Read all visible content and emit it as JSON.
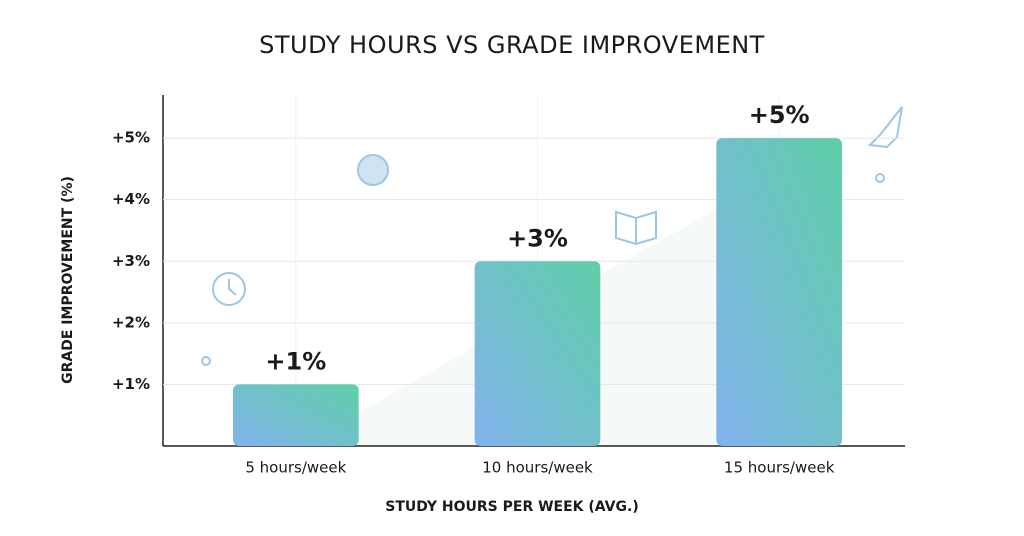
{
  "chart_data": {
    "type": "bar",
    "title": "STUDY HOURS VS GRADE IMPROVEMENT",
    "x_label": "STUDY HOURS PER WEEK (AVG.)",
    "y_label": "GRADE IMPROVEMENT (%)",
    "categories": [
      "5 hours/week",
      "10 hours/week",
      "15 hours/week"
    ],
    "values": [
      1,
      3,
      5
    ],
    "value_labels": [
      "+1%",
      "+3%",
      "+5%"
    ],
    "color": "#5fcfa8",
    "color2": "#82b2ec",
    "ylim": [
      0,
      5.7
    ],
    "yticks": [
      {
        "value": 1,
        "label": "+1%"
      },
      {
        "value": 2,
        "label": "+2%"
      },
      {
        "value": 3,
        "label": "+3%"
      },
      {
        "value": 4,
        "label": "+4%"
      },
      {
        "value": 5,
        "label": "+5%"
      }
    ],
    "grid": true
  }
}
